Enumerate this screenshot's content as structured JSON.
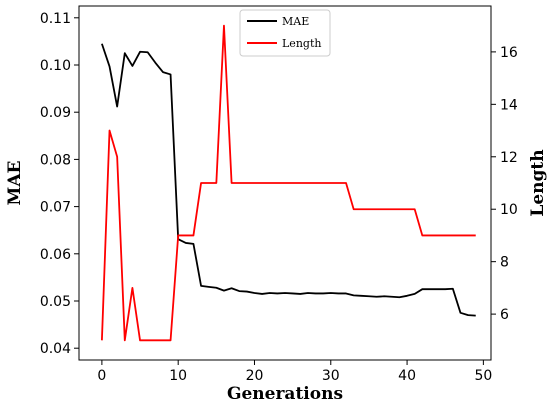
{
  "chart_data": {
    "type": "line",
    "xlabel": "Generations",
    "ylabel_left": "MAE",
    "ylabel_right": "Length",
    "xlim": [
      -3,
      51
    ],
    "ylim_left": [
      0.0375,
      0.1125
    ],
    "ylim_right": [
      4.25,
      17.75
    ],
    "xticks": [
      0,
      10,
      20,
      30,
      40,
      50
    ],
    "yticks_left": [
      0.04,
      0.05,
      0.06,
      0.07,
      0.08,
      0.09,
      0.1,
      0.11
    ],
    "ytick_labels_left": [
      "0.04",
      "0.05",
      "0.06",
      "0.07",
      "0.08",
      "0.09",
      "0.10",
      "0.11"
    ],
    "yticks_right": [
      6,
      8,
      10,
      12,
      14,
      16
    ],
    "legend_position": "top-center",
    "grid": false,
    "series": [
      {
        "name": "MAE",
        "axis": "left",
        "color": "#000000",
        "x": [
          0,
          1,
          2,
          3,
          4,
          5,
          6,
          7,
          8,
          9,
          10,
          11,
          12,
          13,
          14,
          15,
          16,
          17,
          18,
          19,
          20,
          21,
          22,
          23,
          24,
          25,
          26,
          27,
          28,
          29,
          30,
          31,
          32,
          33,
          34,
          35,
          36,
          37,
          38,
          39,
          40,
          41,
          42,
          43,
          44,
          45,
          46,
          47,
          48,
          49
        ],
        "y": [
          0.1045,
          0.0997,
          0.0912,
          0.1025,
          0.0998,
          0.1028,
          0.1027,
          0.1005,
          0.0985,
          0.098,
          0.0631,
          0.0623,
          0.0621,
          0.0532,
          0.053,
          0.0528,
          0.0522,
          0.0527,
          0.0521,
          0.052,
          0.0517,
          0.0515,
          0.0517,
          0.0516,
          0.0517,
          0.0516,
          0.0515,
          0.0517,
          0.0516,
          0.0516,
          0.0517,
          0.0516,
          0.0516,
          0.0512,
          0.0511,
          0.051,
          0.0509,
          0.051,
          0.0509,
          0.0508,
          0.0511,
          0.0515,
          0.0525,
          0.0525,
          0.0525,
          0.0525,
          0.0526,
          0.0475,
          0.047,
          0.0469
        ]
      },
      {
        "name": "Length",
        "axis": "right",
        "color": "#ff0000",
        "x": [
          0,
          1,
          2,
          3,
          4,
          5,
          6,
          7,
          8,
          9,
          10,
          11,
          12,
          13,
          14,
          15,
          16,
          17,
          18,
          19,
          20,
          21,
          22,
          23,
          24,
          25,
          26,
          27,
          28,
          29,
          30,
          31,
          32,
          33,
          34,
          35,
          36,
          37,
          38,
          39,
          40,
          41,
          42,
          43,
          44,
          45,
          46,
          47,
          48,
          49
        ],
        "y": [
          5,
          13,
          12,
          5,
          7,
          5,
          5,
          5,
          5,
          5,
          9,
          9,
          9,
          11,
          11,
          11,
          17,
          11,
          11,
          11,
          11,
          11,
          11,
          11,
          11,
          11,
          11,
          11,
          11,
          11,
          11,
          11,
          11,
          10,
          10,
          10,
          10,
          10,
          10,
          10,
          10,
          10,
          9,
          9,
          9,
          9,
          9,
          9,
          9,
          9
        ]
      }
    ]
  }
}
